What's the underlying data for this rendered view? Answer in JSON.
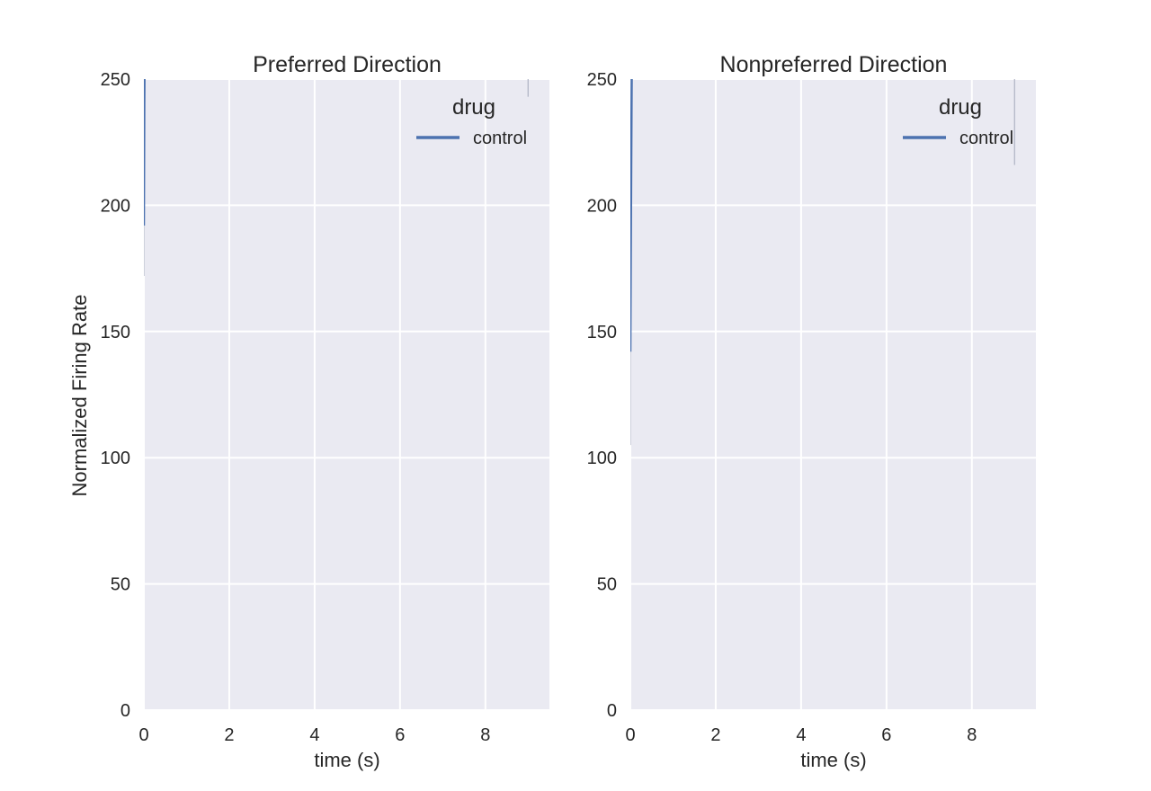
{
  "chart_data": [
    {
      "type": "line",
      "title": "Preferred Direction",
      "xlabel": "time (s)",
      "ylabel": "Normalized Firing Rate",
      "xlim": [
        0,
        9.5
      ],
      "ylim": [
        0,
        250
      ],
      "xticks": [
        0,
        2,
        4,
        6,
        8
      ],
      "xtick_labels": [
        "0",
        "2",
        "4",
        "6",
        "8"
      ],
      "yticks": [
        0,
        50,
        100,
        150,
        200,
        250
      ],
      "ytick_labels": [
        "0",
        "50",
        "100",
        "150",
        "200",
        "250"
      ],
      "grid": true,
      "legend": {
        "title": "drug",
        "placement": "top-right"
      },
      "series": [
        {
          "name": "control",
          "color": "#4c72b0",
          "x": [
            0.0,
            0.01,
            0.02,
            0.03
          ],
          "y": [
            192,
            240,
            265,
            280
          ]
        }
      ],
      "error_bands": [
        {
          "x": 0.0,
          "y_low": 172,
          "y_high": 215
        },
        {
          "x": 9.0,
          "y_low": 243,
          "y_high": 258
        }
      ]
    },
    {
      "type": "line",
      "title": "Nonpreferred Direction",
      "xlabel": "time (s)",
      "ylabel": "",
      "xlim": [
        0,
        9.5
      ],
      "ylim": [
        0,
        250
      ],
      "xticks": [
        0,
        2,
        4,
        6,
        8
      ],
      "xtick_labels": [
        "0",
        "2",
        "4",
        "6",
        "8"
      ],
      "yticks": [
        0,
        50,
        100,
        150,
        200,
        250
      ],
      "ytick_labels": [
        "0",
        "50",
        "100",
        "150",
        "200",
        "250"
      ],
      "grid": true,
      "legend": {
        "title": "drug",
        "placement": "top-right"
      },
      "series": [
        {
          "name": "control",
          "color": "#4c72b0",
          "x": [
            0.0,
            0.01,
            0.02,
            0.03,
            0.04
          ],
          "y": [
            142,
            180,
            215,
            245,
            270
          ]
        }
      ],
      "error_bands": [
        {
          "x": 0.0,
          "y_low": 105,
          "y_high": 175
        },
        {
          "x": 9.0,
          "y_low": 216,
          "y_high": 270
        }
      ]
    }
  ]
}
